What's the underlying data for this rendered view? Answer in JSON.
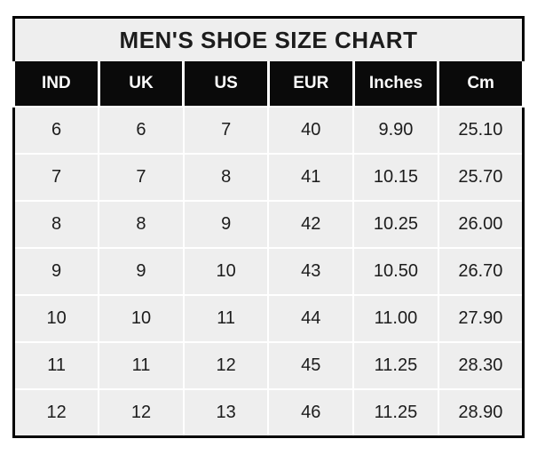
{
  "chart_data": {
    "type": "table",
    "title": "MEN'S SHOE SIZE CHART",
    "columns": [
      "IND",
      "UK",
      "US",
      "EUR",
      "Inches",
      "Cm"
    ],
    "rows": [
      [
        "6",
        "6",
        "7",
        "40",
        "9.90",
        "25.10"
      ],
      [
        "7",
        "7",
        "8",
        "41",
        "10.15",
        "25.70"
      ],
      [
        "8",
        "8",
        "9",
        "42",
        "10.25",
        "26.00"
      ],
      [
        "9",
        "9",
        "10",
        "43",
        "10.50",
        "26.70"
      ],
      [
        "10",
        "10",
        "11",
        "44",
        "11.00",
        "27.90"
      ],
      [
        "11",
        "11",
        "12",
        "45",
        "11.25",
        "28.30"
      ],
      [
        "12",
        "12",
        "13",
        "46",
        "11.25",
        "28.90"
      ]
    ]
  },
  "colors": {
    "page_background": "#ffffff",
    "outer_border": "#000000",
    "title_background": "#eeeeee",
    "header_background": "#0a0a0a",
    "header_text": "#fcfcfc",
    "cell_background": "#eeeeee",
    "cell_text": "#1c1c1c",
    "gridline": "#ffffff"
  }
}
